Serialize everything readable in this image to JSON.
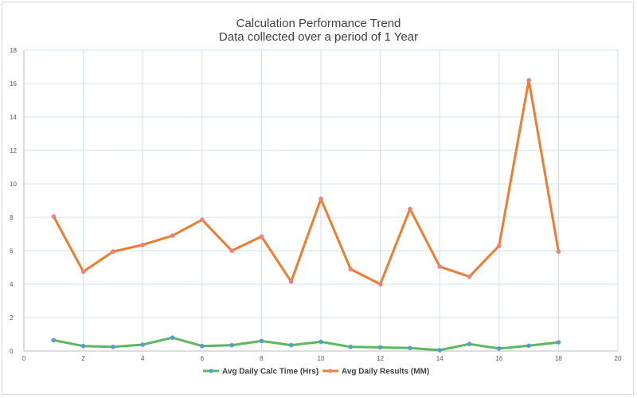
{
  "chart_data": {
    "type": "line",
    "title": "Calculation Performance Trend",
    "subtitle": "Data collected over a period of 1 Year",
    "xlim": [
      0,
      20
    ],
    "ylim": [
      0,
      18
    ],
    "xticks": [
      0,
      2,
      4,
      6,
      8,
      10,
      12,
      14,
      16,
      18,
      20
    ],
    "yticks": [
      0,
      2,
      4,
      6,
      8,
      10,
      12,
      14,
      16,
      18
    ],
    "grid": true,
    "legend_position": "bottom",
    "series": [
      {
        "name": "Avg Daily Calc Time (Hrs)",
        "color": "#5cb85c",
        "marker_color": "#5b9bd5",
        "x": [
          1,
          2,
          3,
          4,
          5,
          6,
          7,
          8,
          9,
          10,
          11,
          12,
          13,
          14,
          15,
          16,
          17,
          18
        ],
        "values": [
          0.65,
          0.3,
          0.25,
          0.38,
          0.8,
          0.3,
          0.35,
          0.6,
          0.35,
          0.55,
          0.25,
          0.22,
          0.18,
          0.05,
          0.42,
          0.15,
          0.32,
          0.52
        ]
      },
      {
        "name": "Avg Daily Results (MM)",
        "color": "#ed7d31",
        "marker_color": "#f08080",
        "x": [
          1,
          2,
          3,
          4,
          5,
          6,
          7,
          8,
          9,
          10,
          11,
          12,
          13,
          14,
          15,
          16,
          17,
          18
        ],
        "values": [
          8.05,
          4.75,
          5.95,
          6.35,
          6.9,
          7.85,
          6.0,
          6.85,
          4.15,
          9.1,
          4.9,
          4.0,
          8.5,
          5.05,
          4.45,
          6.3,
          16.2,
          5.95
        ]
      }
    ]
  }
}
